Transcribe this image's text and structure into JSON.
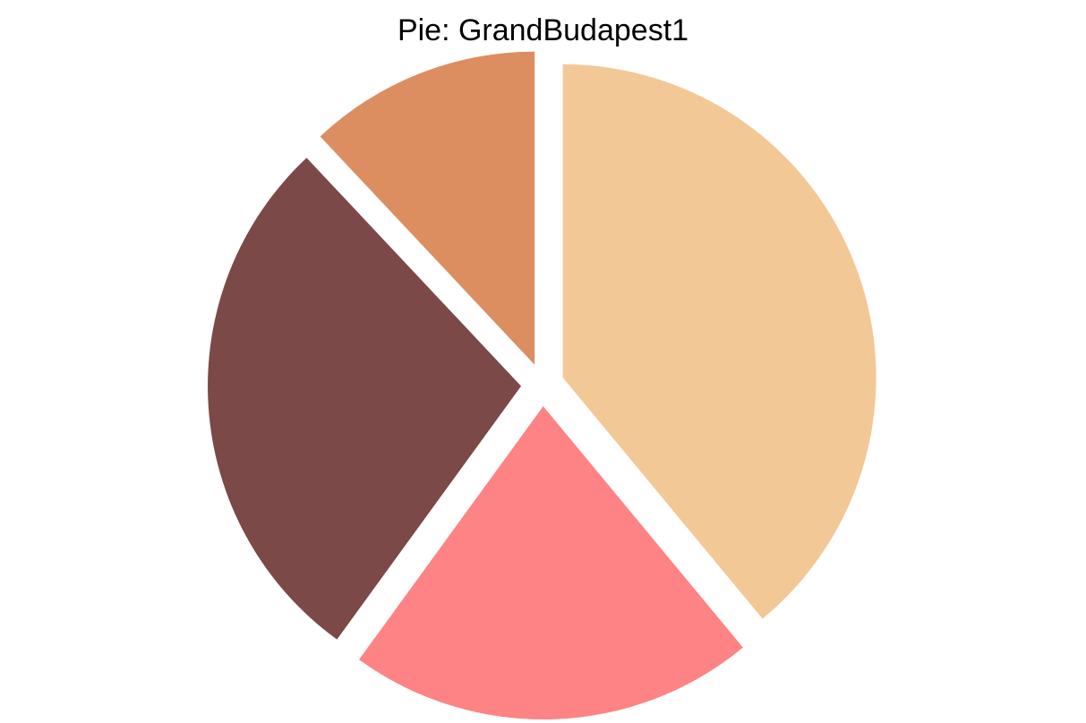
{
  "chart_data": {
    "type": "pie",
    "title": "Pie: GrandBudapest1",
    "start_angle_deg": 90,
    "direction": "clockwise",
    "exploded": true,
    "slices": [
      {
        "value": 0.39,
        "color": "#F3C897"
      },
      {
        "value": 0.21,
        "color": "#FD8384"
      },
      {
        "value": 0.28,
        "color": "#7B4947"
      },
      {
        "value": 0.12,
        "color": "#DC8E61"
      }
    ]
  }
}
